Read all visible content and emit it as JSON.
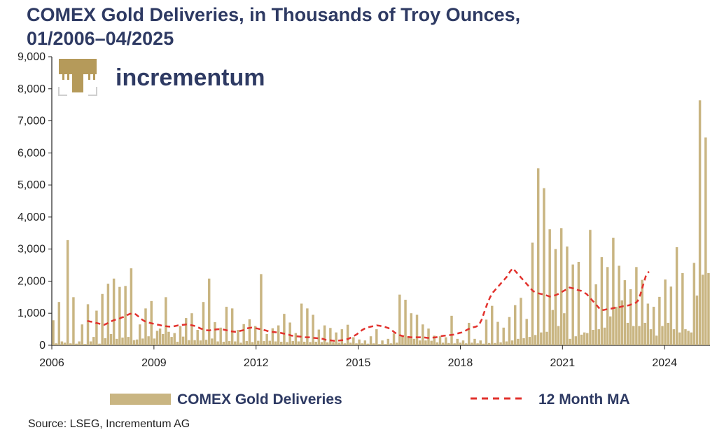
{
  "colors": {
    "bar": "#c9b582",
    "ma": "#e2322d",
    "title": "#2e3a63",
    "logo_gold": "#b59a5a"
  },
  "logo": {
    "text": "incrementum",
    "icon": "tree-icon"
  },
  "source": "Source: LSEG, Incrementum AG",
  "chart_data": {
    "type": "bar",
    "title": "COMEX Gold Deliveries, in Thousands of Troy Ounces,",
    "subtitle": "01/2006–04/2025",
    "xlabel": "",
    "ylabel": "",
    "ylim": [
      0,
      9000
    ],
    "yticks": [
      "0",
      "1,000",
      "2,000",
      "3,000",
      "4,000",
      "5,000",
      "6,000",
      "7,000",
      "8,000",
      "9,000"
    ],
    "xticks": [
      "2006",
      "2009",
      "2012",
      "2015",
      "2018",
      "2021",
      "2024"
    ],
    "x_start": "2006-01",
    "x_end": "2025-04",
    "grid": false,
    "legend_position": "bottom",
    "series": [
      {
        "name": "COMEX Gold Deliveries",
        "kind": "bar",
        "values": [
          780,
          60,
          1350,
          120,
          80,
          3280,
          60,
          1500,
          50,
          120,
          650,
          40,
          1280,
          120,
          260,
          1080,
          50,
          1600,
          220,
          1920,
          350,
          2080,
          200,
          1820,
          240,
          1850,
          260,
          2400,
          160,
          180,
          650,
          210,
          1150,
          280,
          1380,
          210,
          450,
          520,
          350,
          1500,
          420,
          260,
          380,
          110,
          600,
          270,
          850,
          160,
          1000,
          160,
          480,
          150,
          1350,
          170,
          2080,
          210,
          720,
          120,
          550,
          110,
          1200,
          130,
          1150,
          120,
          480,
          80,
          660,
          130,
          810,
          100,
          600,
          140,
          2220,
          130,
          350,
          140,
          530,
          120,
          620,
          110,
          980,
          100,
          710,
          130,
          380,
          120,
          1300,
          110,
          1150,
          100,
          950,
          110,
          490,
          100,
          620,
          90,
          540,
          100,
          400,
          80,
          500,
          60,
          640,
          80,
          250,
          60,
          180,
          60,
          150,
          50,
          280,
          60,
          500,
          40,
          150,
          40,
          200,
          60,
          370,
          80,
          1580,
          300,
          1420,
          280,
          1000,
          200,
          950,
          150,
          650,
          150,
          520,
          140,
          300,
          90,
          280,
          80,
          250,
          70,
          920,
          60,
          200,
          80,
          150,
          60,
          700,
          80,
          200,
          60,
          150,
          50,
          800,
          70,
          1230,
          70,
          730,
          90,
          550,
          120,
          880,
          150,
          1250,
          200,
          1480,
          220,
          820,
          260,
          3200,
          320,
          5520,
          400,
          4900,
          420,
          3620,
          1100,
          3000,
          600,
          3650,
          1000,
          3080,
          200,
          2520,
          280,
          2600,
          330,
          400,
          380,
          3600,
          480,
          1900,
          500,
          2750,
          550,
          2440,
          900,
          3350,
          1200,
          2480,
          1400,
          2030,
          700,
          1750,
          600,
          2440,
          600,
          2040,
          700,
          1300,
          500,
          1200,
          300,
          1510,
          600,
          2050,
          700,
          1830,
          500,
          3060,
          400,
          2250,
          500,
          450,
          400,
          2570,
          1550,
          7640,
          2200,
          6480,
          2250
        ]
      },
      {
        "name": "12 Month MA",
        "kind": "line",
        "style": "dashed",
        "start": "2007-01",
        "values": [
          760,
          740,
          730,
          700,
          680,
          650,
          640,
          680,
          730,
          770,
          800,
          820,
          860,
          890,
          940,
          980,
          990,
          970,
          900,
          820,
          760,
          720,
          700,
          680,
          650,
          640,
          620,
          610,
          590,
          580,
          580,
          600,
          620,
          630,
          640,
          650,
          640,
          620,
          600,
          560,
          520,
          490,
          470,
          460,
          480,
          490,
          500,
          500,
          490,
          470,
          450,
          430,
          420,
          430,
          450,
          470,
          520,
          540,
          550,
          540,
          520,
          500,
          480,
          460,
          430,
          420,
          410,
          400,
          390,
          370,
          350,
          330,
          300,
          290,
          280,
          270,
          260,
          250,
          250,
          240,
          230,
          220,
          210,
          200,
          170,
          160,
          150,
          140,
          140,
          150,
          160,
          170,
          200,
          240,
          290,
          340,
          420,
          480,
          530,
          560,
          580,
          600,
          620,
          610,
          590,
          570,
          540,
          500,
          420,
          360,
          320,
          290,
          270,
          260,
          250,
          250,
          250,
          250,
          250,
          240,
          230,
          230,
          240,
          250,
          270,
          290,
          300,
          310,
          320,
          330,
          350,
          380,
          400,
          440,
          490,
          530,
          560,
          580,
          620,
          800,
          1050,
          1300,
          1500,
          1650,
          1750,
          1850,
          1950,
          2050,
          2150,
          2300,
          2400,
          2300,
          2200,
          2100,
          2000,
          1900,
          1800,
          1700,
          1650,
          1620,
          1600,
          1580,
          1550,
          1520,
          1540,
          1560,
          1600,
          1650,
          1700,
          1750,
          1800,
          1780,
          1760,
          1720,
          1700,
          1650,
          1600,
          1500,
          1400,
          1300,
          1200,
          1100,
          1100,
          1120,
          1130,
          1150,
          1170,
          1180,
          1200,
          1220,
          1230,
          1250,
          1280,
          1300,
          1380,
          1600,
          1900,
          2200,
          2300
        ]
      }
    ]
  }
}
